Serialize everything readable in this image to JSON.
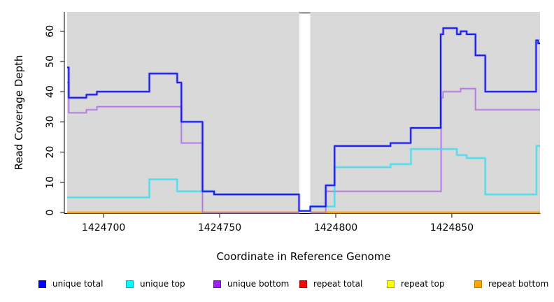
{
  "figure": {
    "xlabel": "Coordinate in Reference Genome",
    "ylabel": "Read Coverage Depth"
  },
  "chart_data": {
    "type": "line",
    "subtype": "step",
    "title": "",
    "xlabel": "Coordinate in Reference Genome",
    "ylabel": "Read Coverage Depth",
    "xlim": [
      1424684.3,
      1424888.0
    ],
    "ylim": [
      0,
      66.4
    ],
    "x_tick_values": [
      1424700,
      1424750,
      1424800,
      1424850
    ],
    "x_tick_labels": [
      "1424700",
      "1424750",
      "1424800",
      "1424850"
    ],
    "y_tick_values": [
      0,
      10,
      20,
      30,
      40,
      50,
      60
    ],
    "y_tick_labels": [
      "0",
      "10",
      "20",
      "30",
      "40",
      "50",
      "60"
    ],
    "grid": false,
    "plot_background": "#d9d9d9",
    "mask_region": {
      "x0": 1424784.35,
      "x1": 1424789.0,
      "color": "#ffffff",
      "cap_color": "#9e9e9e"
    },
    "legend_position": "bottom",
    "legend": [
      {
        "label": "unique total",
        "fill": "#0000ff",
        "border": "#0000a0"
      },
      {
        "label": "unique top",
        "fill": "#00ffff",
        "border": "#00aec0"
      },
      {
        "label": "unique bottom",
        "fill": "#a020f0",
        "border": "#6d14a6"
      },
      {
        "label": "repeat total",
        "fill": "#ff0000",
        "border": "#a80000"
      },
      {
        "label": "repeat top",
        "fill": "#ffff00",
        "border": "#b0a800"
      },
      {
        "label": "repeat bottom",
        "fill": "#ffa500",
        "border": "#c07c00"
      }
    ],
    "series": [
      {
        "name": "repeat total",
        "color": "#ff2222",
        "halo": "rgba(255,0,0,0.3)",
        "width": 1.3,
        "segments": [
          [
            [
              1424684.3,
              0
            ],
            [
              1424784.35,
              0
            ]
          ],
          [
            [
              1424789.0,
              0
            ],
            [
              1424888.0,
              0
            ]
          ]
        ]
      },
      {
        "name": "repeat top",
        "color": "#ffff33",
        "halo": "rgba(255,255,0,0.3)",
        "width": 1.3,
        "segments": [
          [
            [
              1424684.3,
              0
            ],
            [
              1424784.35,
              0
            ]
          ],
          [
            [
              1424789.0,
              0
            ],
            [
              1424888.0,
              0
            ]
          ]
        ]
      },
      {
        "name": "repeat bottom",
        "color": "#ffa500",
        "halo": "rgba(255,165,0,0.35)",
        "width": 1.7,
        "segments": [
          [
            [
              1424684.3,
              0
            ],
            [
              1424784.35,
              0
            ]
          ],
          [
            [
              1424789.0,
              0
            ],
            [
              1424888.0,
              0
            ]
          ]
        ]
      },
      {
        "name": "unique bottom",
        "color": "#b277e4",
        "halo": "rgba(170,100,230,0.3)",
        "width": 1.3,
        "segments": [
          [
            [
              1424684.3,
              43
            ],
            [
              1424685.0,
              33
            ],
            [
              1424692.6,
              34
            ],
            [
              1424697.1,
              35
            ],
            [
              1424733.5,
              23
            ],
            [
              1424742.6,
              0
            ],
            [
              1424784.35,
              0
            ]
          ],
          [
            [
              1424789.0,
              0
            ],
            [
              1424795.7,
              7
            ],
            [
              1424845.4,
              38
            ],
            [
              1424846.2,
              40
            ],
            [
              1424853.8,
              41
            ],
            [
              1424860.2,
              34
            ],
            [
              1424888.0,
              34
            ]
          ]
        ]
      },
      {
        "name": "unique top",
        "color": "#45dff0",
        "halo": "rgba(0,220,240,0.3)",
        "width": 1.5,
        "segments": [
          [
            [
              1424684.3,
              5
            ],
            [
              1424719.7,
              11
            ],
            [
              1424731.7,
              7
            ],
            [
              1424747.6,
              6
            ],
            [
              1424784.35,
              6
            ]
          ],
          [
            [
              1424789.0,
              2
            ],
            [
              1424799.5,
              15
            ],
            [
              1424823.6,
              16
            ],
            [
              1424832.4,
              21
            ],
            [
              1424852.2,
              19
            ],
            [
              1424856.4,
              18
            ],
            [
              1424864.4,
              6
            ],
            [
              1424886.5,
              22
            ],
            [
              1424888.0,
              22
            ]
          ]
        ]
      },
      {
        "name": "unique total",
        "color": "#1b1cee",
        "halo": "rgba(80,80,245,0.35)",
        "width": 2.0,
        "segments": [
          [
            [
              1424684.3,
              48
            ],
            [
              1424685.0,
              38
            ],
            [
              1424692.6,
              39
            ],
            [
              1424697.1,
              40
            ],
            [
              1424719.7,
              46
            ],
            [
              1424731.7,
              43
            ],
            [
              1424733.5,
              30
            ],
            [
              1424742.6,
              7
            ],
            [
              1424747.6,
              6
            ],
            [
              1424784.2,
              0.5
            ],
            [
              1424789.0,
              2
            ],
            [
              1424795.7,
              9
            ],
            [
              1424799.5,
              22
            ],
            [
              1424823.6,
              23
            ],
            [
              1424832.3,
              28
            ],
            [
              1424845.2,
              59
            ],
            [
              1424846.3,
              61
            ],
            [
              1424852.2,
              59
            ],
            [
              1424853.8,
              60
            ],
            [
              1424856.4,
              59
            ],
            [
              1424860.2,
              52
            ],
            [
              1424864.4,
              40
            ],
            [
              1424886.3,
              57
            ],
            [
              1424887.2,
              56
            ],
            [
              1424888.0,
              56
            ]
          ]
        ]
      }
    ]
  }
}
